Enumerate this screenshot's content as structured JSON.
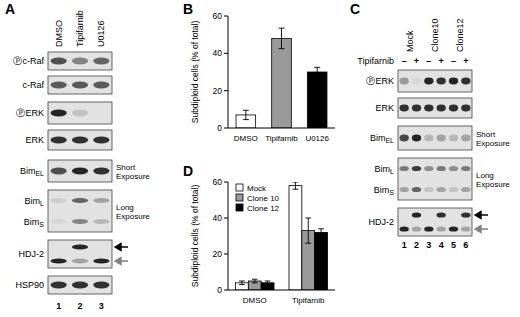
{
  "chart_data": [
    {
      "title": "B",
      "type": "bar",
      "y_label": "Subdiploid cells (% of total)",
      "categories": [
        "DMSO",
        "Tipifarnib",
        "U0126"
      ],
      "values": [
        7,
        48,
        30
      ],
      "errors": [
        2.5,
        5.5,
        2.5
      ],
      "colors": [
        "#ffffff",
        "#9a9a9a",
        "#000000"
      ],
      "ylim": [
        0,
        60
      ],
      "yticks": [
        0,
        20,
        40,
        60
      ]
    },
    {
      "title": "D",
      "type": "bar",
      "y_label": "Subdiploid cells (% of total)",
      "categories": [
        "DMSO",
        "Tipifarnib"
      ],
      "series": [
        {
          "name": "Mock",
          "color": "#ffffff",
          "values": [
            4,
            58
          ],
          "errors": [
            1,
            2
          ]
        },
        {
          "name": "Clone 10",
          "color": "#9a9a9a",
          "values": [
            5,
            33
          ],
          "errors": [
            1,
            7
          ]
        },
        {
          "name": "Clone 12",
          "color": "#000000",
          "values": [
            4,
            32
          ],
          "errors": [
            1,
            2
          ]
        }
      ],
      "ylim": [
        0,
        60
      ],
      "yticks": [
        0,
        20,
        40,
        60
      ],
      "legend": "top-left"
    }
  ],
  "blots": [
    {
      "title": "A",
      "lanes": [
        "DMSO",
        "Tipifarnib",
        "U0126"
      ],
      "rows": [
        {
          "label": "Ⓟc-Raf",
          "tracks": [
            {
              "bands": [
                0.7,
                0.45,
                0.6
              ]
            }
          ]
        },
        {
          "label": "c-Raf",
          "tracks": [
            {
              "bands": [
                0.65,
                0.65,
                0.65
              ]
            }
          ]
        },
        {
          "label": "ⓅERK",
          "tracks": [
            {
              "bands": [
                0.9,
                0.15,
                0
              ]
            }
          ]
        },
        {
          "label": "ERK",
          "tracks": [
            {
              "bands": [
                0.85,
                0.85,
                0.85
              ]
            }
          ]
        },
        {
          "label": "Bim",
          "sub": "EL",
          "exposure": "Short Exposure",
          "tracks": [
            {
              "bands": [
                0.7,
                0.9,
                0.85
              ]
            }
          ]
        },
        {
          "exposure": "Long Exposure",
          "tracks": [
            {
              "label": "Bim",
              "sub": "L",
              "bands": [
                0.1,
                0.6,
                0.3
              ]
            },
            {
              "label": "Bim",
              "sub": "S",
              "bands": [
                0.05,
                0.45,
                0.2
              ]
            }
          ]
        },
        {
          "label": "HDJ-2",
          "tracks": [
            {
              "arrow": "black",
              "bands": [
                0,
                0.9,
                0
              ]
            },
            {
              "arrow": "gray",
              "bands": [
                0.9,
                0.3,
                0.9
              ]
            }
          ]
        },
        {
          "label": "HSP90",
          "tracks": [
            {
              "bands": [
                0.85,
                0.85,
                0.85
              ]
            }
          ]
        }
      ],
      "lane_numbers": [
        1,
        2,
        3
      ]
    },
    {
      "title": "C",
      "groups": [
        "Mock",
        "Clone10",
        "Clone12"
      ],
      "treatment": {
        "label": "Tipifarnib",
        "signs": [
          "–",
          "+",
          "–",
          "+",
          "–",
          "+"
        ]
      },
      "rows": [
        {
          "label": "ⓅERK",
          "tracks": [
            {
              "bands": [
                0.35,
                0.05,
                0.9,
                0.85,
                0.9,
                0.85
              ]
            }
          ]
        },
        {
          "label": "ERK",
          "tracks": [
            {
              "bands": [
                0.85,
                0.85,
                0.85,
                0.85,
                0.85,
                0.85
              ]
            }
          ]
        },
        {
          "label": "Bim",
          "sub": "EL",
          "exposure": "Short Exposure",
          "tracks": [
            {
              "bands": [
                0.75,
                0.9,
                0.2,
                0.3,
                0.2,
                0.3
              ]
            }
          ]
        },
        {
          "exposure": "Long Exposure",
          "tracks": [
            {
              "label": "Bim",
              "sub": "L",
              "bands": [
                0.5,
                0.8,
                0.4,
                0.5,
                0.4,
                0.5
              ]
            },
            {
              "label": "Bim",
              "sub": "S",
              "bands": [
                0.3,
                0.6,
                0.15,
                0.3,
                0.15,
                0.3
              ]
            }
          ]
        },
        {
          "label": "HDJ-2",
          "tracks": [
            {
              "arrow": "black",
              "bands": [
                0,
                0.9,
                0,
                0.85,
                0,
                0.85
              ]
            },
            {
              "arrow": "gray",
              "bands": [
                0.9,
                0.3,
                0.9,
                0.3,
                0.9,
                0.3
              ]
            }
          ]
        }
      ],
      "lane_numbers": [
        1,
        2,
        3,
        4,
        5,
        6
      ]
    }
  ]
}
